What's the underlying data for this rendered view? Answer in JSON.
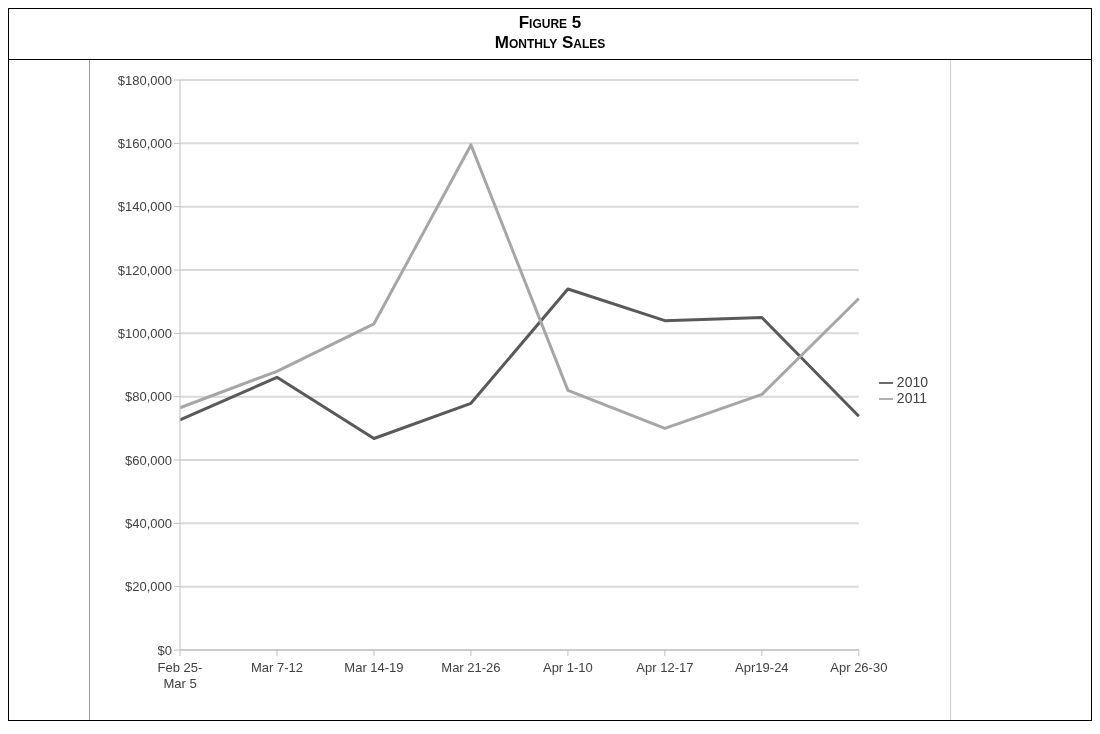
{
  "chart_data": {
    "type": "line",
    "title": "Figure 5",
    "subtitle": "Monthly Sales",
    "categories": [
      "Feb 25-Mar 5",
      "Mar 7-12",
      "Mar 14-19",
      "Mar 21-26",
      "Apr 1-10",
      "Apr 12-17",
      "Apr19-24",
      "Apr 26-30"
    ],
    "series": [
      {
        "name": "2010",
        "color": "#595959",
        "values": [
          72700,
          86100,
          66800,
          77900,
          114000,
          104000,
          105000,
          73800
        ]
      },
      {
        "name": "2011",
        "color": "#a6a6a6",
        "values": [
          76500,
          88000,
          103000,
          159500,
          82000,
          70000,
          80700,
          111000
        ]
      }
    ],
    "ylim": [
      0,
      180000
    ],
    "yticks": [
      {
        "value": 0,
        "label": "$0"
      },
      {
        "value": 20000,
        "label": "$20,000"
      },
      {
        "value": 40000,
        "label": "$40,000"
      },
      {
        "value": 60000,
        "label": "$60,000"
      },
      {
        "value": 80000,
        "label": "$80,000"
      },
      {
        "value": 100000,
        "label": "$100,000"
      },
      {
        "value": 120000,
        "label": "$120,000"
      },
      {
        "value": 140000,
        "label": "$140,000"
      },
      {
        "value": 160000,
        "label": "$160,000"
      },
      {
        "value": 180000,
        "label": "$180,000"
      }
    ],
    "grid": "y",
    "legend": "right",
    "marker": "none",
    "line_style": "solid"
  }
}
